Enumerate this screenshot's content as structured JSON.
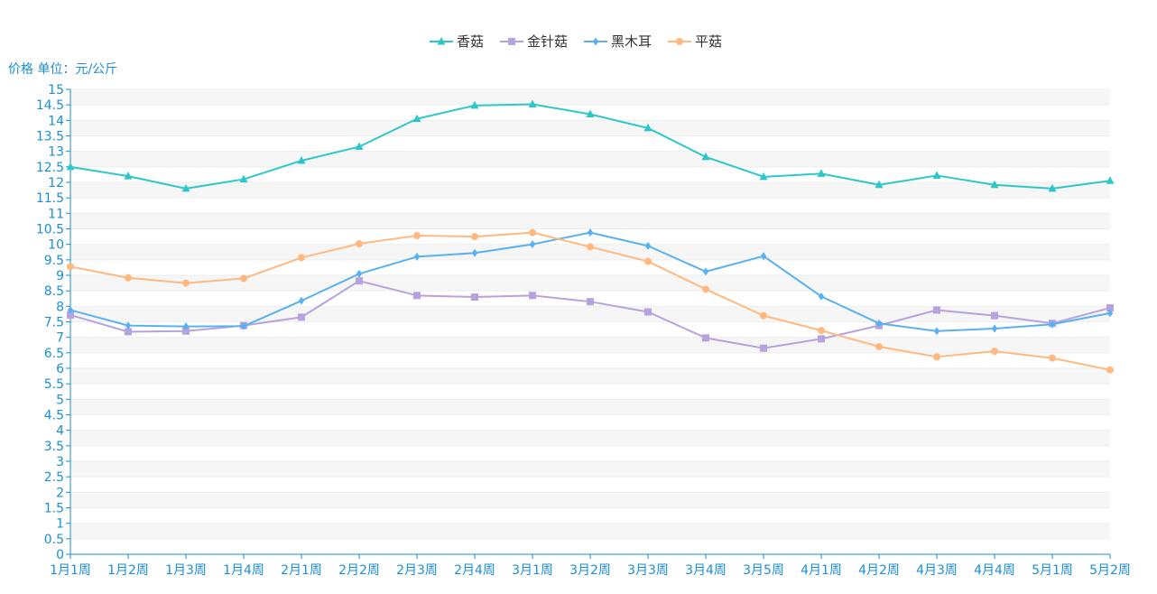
{
  "chart_data": {
    "type": "line",
    "title": "",
    "ylabel": "价格 单位：元/公斤",
    "xlabel": "",
    "ylim": [
      0,
      15
    ],
    "ytick_step": 0.5,
    "grid": true,
    "legend_position": "top-center",
    "categories": [
      "1月1周",
      "1月2周",
      "1月3周",
      "1月4周",
      "2月1周",
      "2月2周",
      "2月3周",
      "2月4周",
      "3月1周",
      "3月2周",
      "3月3周",
      "3月4周",
      "3月5周",
      "4月1周",
      "4月2周",
      "4月3周",
      "4月4周",
      "5月1周",
      "5月2周"
    ],
    "series": [
      {
        "name": "香菇",
        "color": "#2ec7c9",
        "marker": "triangle",
        "values": [
          12.5,
          12.2,
          11.8,
          12.1,
          12.7,
          13.15,
          14.05,
          14.48,
          14.52,
          14.2,
          13.75,
          12.82,
          12.18,
          12.28,
          11.92,
          12.22,
          11.92,
          11.8,
          12.05
        ]
      },
      {
        "name": "金针菇",
        "color": "#b6a2de",
        "marker": "square",
        "values": [
          7.72,
          7.18,
          7.2,
          7.38,
          7.65,
          8.82,
          8.35,
          8.3,
          8.35,
          8.15,
          7.82,
          6.98,
          6.65,
          6.95,
          7.38,
          7.88,
          7.7,
          7.45,
          7.95
        ]
      },
      {
        "name": "黑木耳",
        "color": "#5ab1ef",
        "marker": "diamond",
        "values": [
          7.88,
          7.38,
          7.35,
          7.36,
          8.18,
          9.05,
          9.6,
          9.72,
          10.0,
          10.38,
          9.95,
          9.12,
          9.62,
          8.32,
          7.45,
          7.2,
          7.28,
          7.42,
          7.78
        ]
      },
      {
        "name": "平菇",
        "color": "#ffb980",
        "marker": "circle",
        "values": [
          9.28,
          8.92,
          8.75,
          8.9,
          9.57,
          10.02,
          10.28,
          10.25,
          10.38,
          9.92,
          9.45,
          8.55,
          7.7,
          7.22,
          6.7,
          6.37,
          6.55,
          6.33,
          5.95
        ]
      }
    ]
  }
}
